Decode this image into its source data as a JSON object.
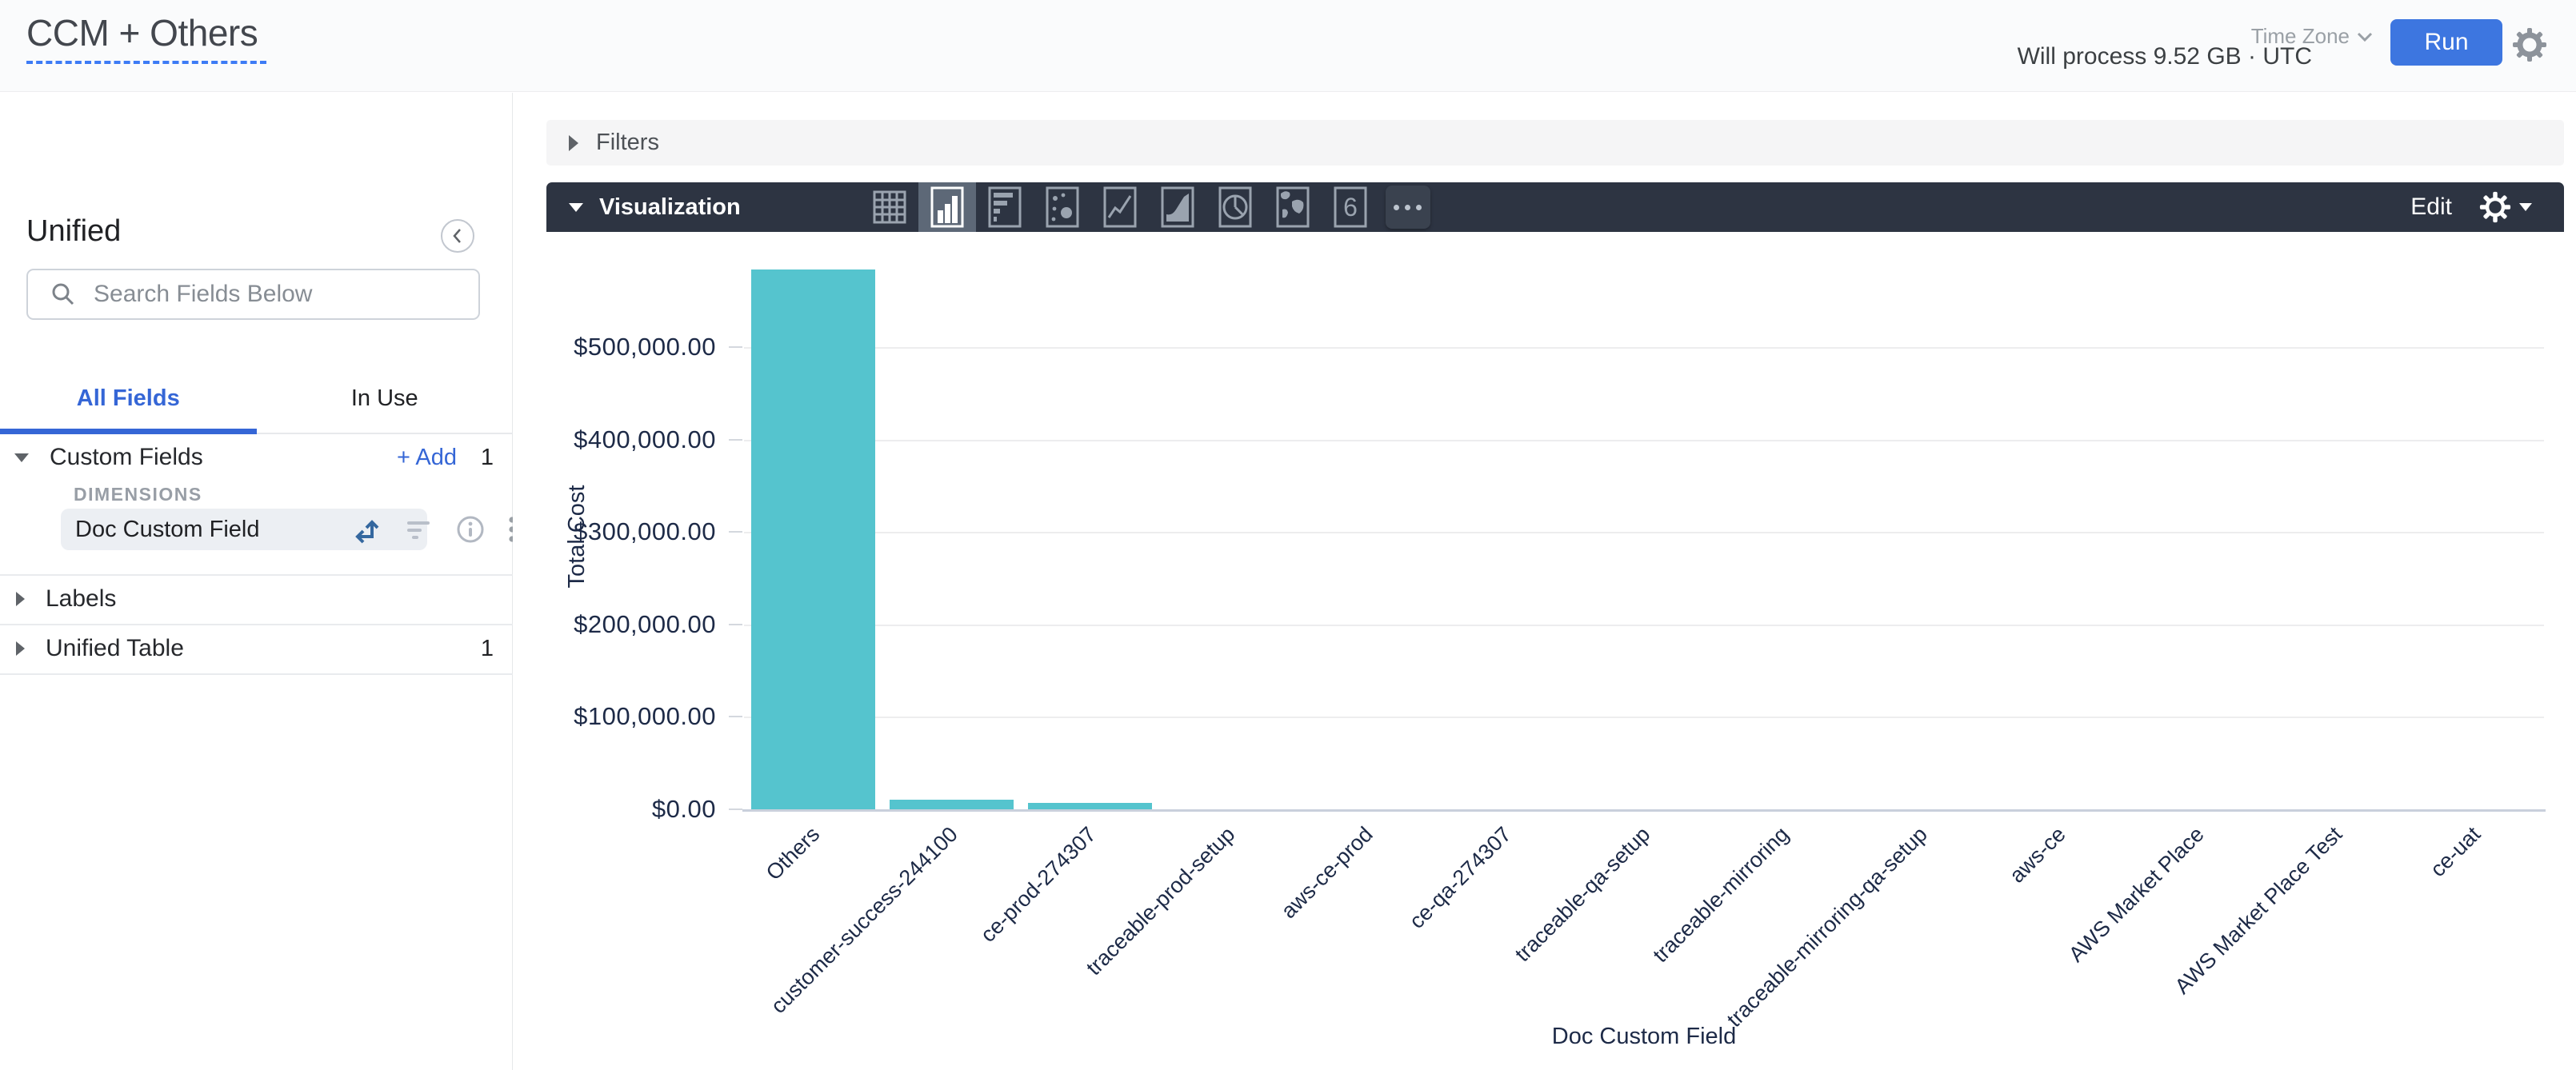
{
  "header": {
    "title": "CCM + Others",
    "time_zone_label": "Time Zone",
    "will_process": "Will process 9.52 GB · UTC",
    "run_label": "Run"
  },
  "sidebar": {
    "view_title": "Unified",
    "search_placeholder": "Search Fields Below",
    "tabs": [
      {
        "label": "All Fields",
        "active": true
      },
      {
        "label": "In Use",
        "active": false
      }
    ],
    "sections": [
      {
        "label": "Custom Fields",
        "expanded": true,
        "add_label": "Add",
        "count": "1",
        "group_label": "DIMENSIONS",
        "fields": [
          {
            "label": "Doc Custom Field",
            "selected": true
          }
        ]
      },
      {
        "label": "Labels",
        "expanded": false,
        "count": ""
      },
      {
        "label": "Unified Table",
        "expanded": false,
        "count": "1"
      }
    ]
  },
  "filters": {
    "label": "Filters"
  },
  "visualization": {
    "label": "Visualization",
    "edit_label": "Edit",
    "chart_types": [
      "table",
      "column",
      "bar",
      "scatter",
      "line",
      "area",
      "pie",
      "map",
      "single-value",
      "more"
    ],
    "selected_type": "column",
    "single_value_glyph": "6"
  },
  "chart_data": {
    "type": "bar",
    "title": "",
    "xlabel": "Doc Custom Field",
    "ylabel": "Total Cost",
    "categories": [
      "Others",
      "customer-success-244100",
      "ce-prod-274307",
      "traceable-prod-setup",
      "aws-ce-prod",
      "ce-qa-274307",
      "traceable-qa-setup",
      "traceable-mirroring",
      "traceable-mirroring-qa-setup",
      "aws-ce",
      "AWS Market Place",
      "AWS Market Place Test",
      "ce-uat"
    ],
    "values": [
      584000,
      10500,
      7000,
      0,
      0,
      0,
      0,
      0,
      0,
      0,
      0,
      0,
      0
    ],
    "y_ticks": [
      {
        "value": 500000,
        "label": "$500,000.00"
      },
      {
        "value": 400000,
        "label": "$400,000.00"
      },
      {
        "value": 300000,
        "label": "$300,000.00"
      },
      {
        "value": 200000,
        "label": "$200,000.00"
      },
      {
        "value": 100000,
        "label": "$100,000.00"
      },
      {
        "value": 0,
        "label": "$0.00"
      }
    ],
    "ylim": [
      0,
      590000
    ],
    "bar_color": "#55c4ce",
    "grid": true,
    "legend": "none"
  }
}
